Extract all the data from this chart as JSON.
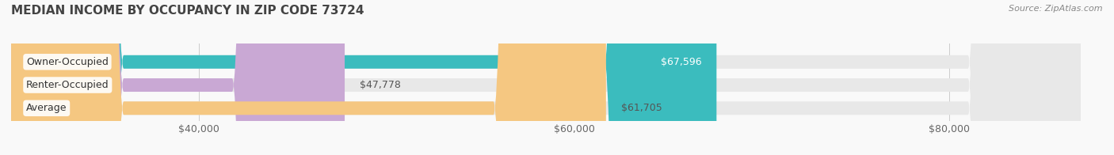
{
  "title": "MEDIAN INCOME BY OCCUPANCY IN ZIP CODE 73724",
  "source": "Source: ZipAtlas.com",
  "categories": [
    "Owner-Occupied",
    "Renter-Occupied",
    "Average"
  ],
  "values": [
    67596,
    47778,
    61705
  ],
  "bar_colors": [
    "#3bbcbe",
    "#c9a8d4",
    "#f5c781"
  ],
  "bar_bg_color": "#e8e8e8",
  "label_colors": [
    "#ffffff",
    "#555555",
    "#555555"
  ],
  "label_values": [
    "$67,596",
    "$47,778",
    "$61,705"
  ],
  "xlim": [
    30000,
    87000
  ],
  "xticks": [
    40000,
    60000,
    80000
  ],
  "xtick_labels": [
    "$40,000",
    "$60,000",
    "$80,000"
  ],
  "title_fontsize": 11,
  "tick_fontsize": 9,
  "bar_label_fontsize": 9,
  "category_fontsize": 9,
  "bg_color": "#f9f9f9",
  "bar_height": 0.58
}
